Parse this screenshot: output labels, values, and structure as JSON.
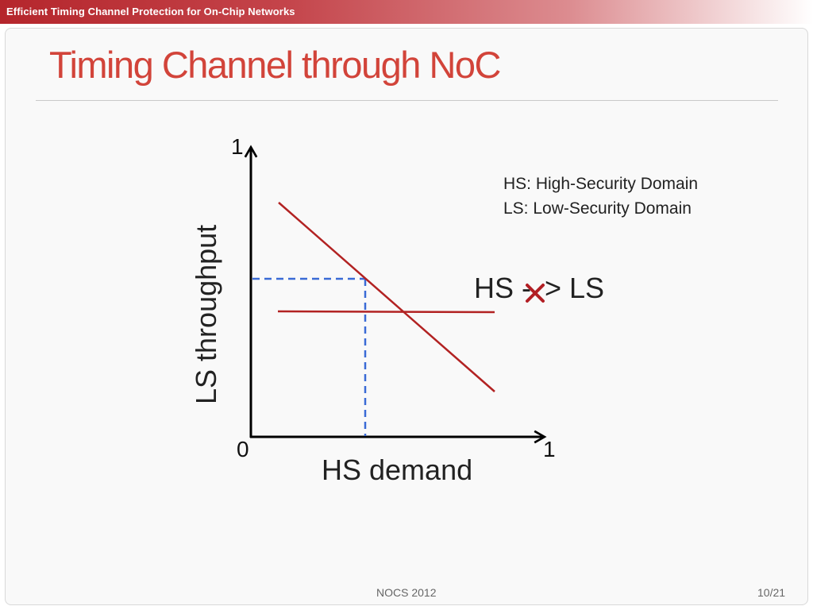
{
  "header": {
    "title": "Efficient Timing Channel Protection for On-Chip Networks"
  },
  "slide": {
    "title": "Timing Channel through NoC"
  },
  "diagram": {
    "y_axis_label": "LS throughput",
    "x_axis_label": "HS demand",
    "origin_label": "0",
    "y_max_label": "1",
    "x_max_label": "1",
    "legend": [
      "HS: High-Security Domain",
      "LS: Low-Security Domain"
    ],
    "relation": {
      "left": "HS -",
      "right": "> LS"
    },
    "colors": {
      "line": "#b22222",
      "dashed": "#3a6bd6",
      "cross": "#b21f24",
      "axis": "#000000"
    }
  },
  "footer": {
    "venue": "NOCS 2012",
    "page": "10/21"
  }
}
